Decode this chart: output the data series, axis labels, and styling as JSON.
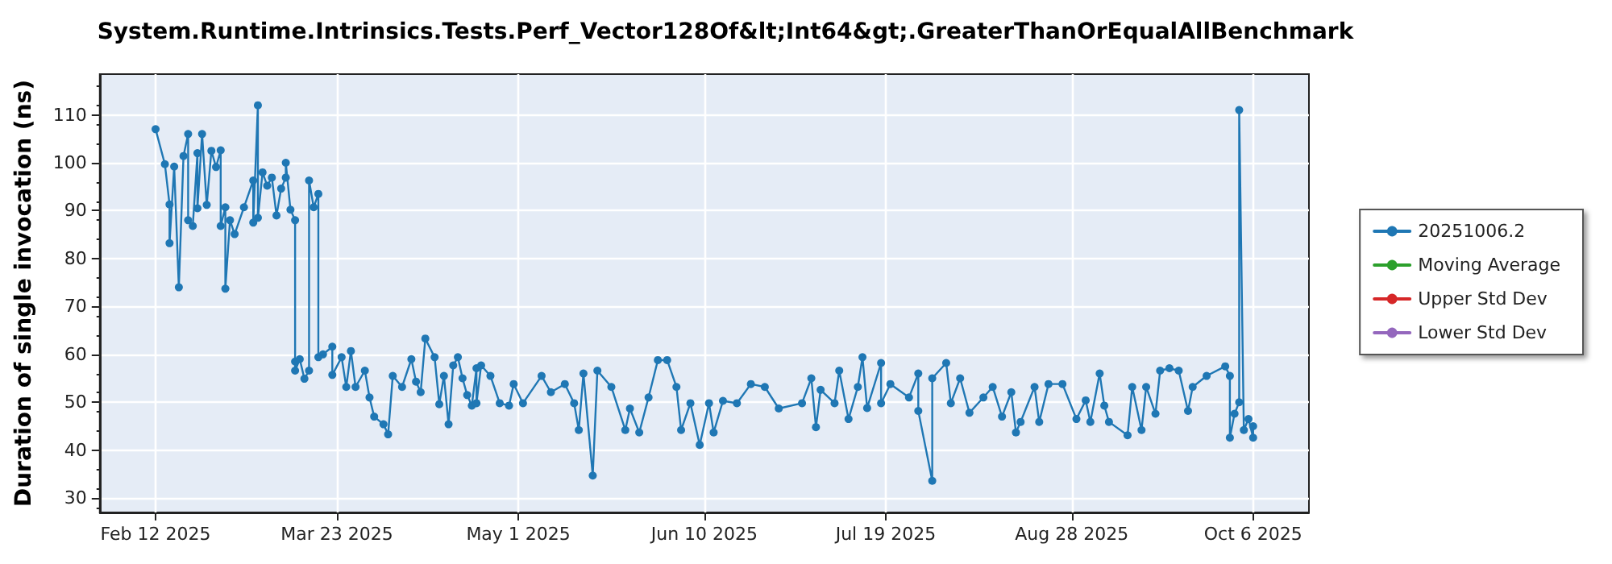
{
  "chart_data": {
    "type": "line",
    "title": "System.Runtime.Intrinsics.Tests.Perf_Vector128Of&lt;Int64&gt;.GreaterThanOrEqualAllBenchmark",
    "ylabel": "Duration of single invocation (ns)",
    "xlim": [
      "2025-01-31",
      "2025-10-18"
    ],
    "xticks": [
      {
        "value": "2025-02-12",
        "label": "Feb 12 2025"
      },
      {
        "value": "2025-03-23",
        "label": "Mar 23 2025"
      },
      {
        "value": "2025-05-01",
        "label": "May 1 2025"
      },
      {
        "value": "2025-06-10",
        "label": "Jun 10 2025"
      },
      {
        "value": "2025-07-19",
        "label": "Jul 19 2025"
      },
      {
        "value": "2025-08-28",
        "label": "Aug 28 2025"
      },
      {
        "value": "2025-10-06",
        "label": "Oct 6 2025"
      }
    ],
    "ylim": [
      27,
      118.5
    ],
    "yticks": [
      30,
      40,
      50,
      60,
      70,
      80,
      90,
      100,
      110
    ],
    "grid": true,
    "legend": "right",
    "marker": "circle",
    "line_style": "solid",
    "series": [
      {
        "name": "20251006.2",
        "color": "#1f77b4",
        "x": [
          "2025-02-12",
          "2025-02-14",
          "2025-02-15",
          "2025-02-15",
          "2025-02-16",
          "2025-02-17",
          "2025-02-18",
          "2025-02-19",
          "2025-02-19",
          "2025-02-20",
          "2025-02-21",
          "2025-02-21",
          "2025-02-22",
          "2025-02-23",
          "2025-02-24",
          "2025-02-25",
          "2025-02-26",
          "2025-02-26",
          "2025-02-27",
          "2025-02-27",
          "2025-02-28",
          "2025-03-01",
          "2025-03-03",
          "2025-03-05",
          "2025-03-05",
          "2025-03-06",
          "2025-03-06",
          "2025-03-07",
          "2025-03-08",
          "2025-03-09",
          "2025-03-10",
          "2025-03-11",
          "2025-03-12",
          "2025-03-12",
          "2025-03-13",
          "2025-03-14",
          "2025-03-14",
          "2025-03-14",
          "2025-03-15",
          "2025-03-16",
          "2025-03-17",
          "2025-03-17",
          "2025-03-18",
          "2025-03-19",
          "2025-03-19",
          "2025-03-20",
          "2025-03-22",
          "2025-03-22",
          "2025-03-24",
          "2025-03-25",
          "2025-03-26",
          "2025-03-27",
          "2025-03-29",
          "2025-03-30",
          "2025-03-31",
          "2025-04-02",
          "2025-04-03",
          "2025-04-04",
          "2025-04-06",
          "2025-04-08",
          "2025-04-09",
          "2025-04-10",
          "2025-04-11",
          "2025-04-13",
          "2025-04-14",
          "2025-04-15",
          "2025-04-16",
          "2025-04-17",
          "2025-04-18",
          "2025-04-19",
          "2025-04-20",
          "2025-04-21",
          "2025-04-22",
          "2025-04-22",
          "2025-04-23",
          "2025-04-25",
          "2025-04-27",
          "2025-04-29",
          "2025-04-30",
          "2025-05-02",
          "2025-05-06",
          "2025-05-08",
          "2025-05-11",
          "2025-05-13",
          "2025-05-14",
          "2025-05-15",
          "2025-05-17",
          "2025-05-18",
          "2025-05-21",
          "2025-05-24",
          "2025-05-25",
          "2025-05-27",
          "2025-05-29",
          "2025-05-31",
          "2025-06-02",
          "2025-06-04",
          "2025-06-05",
          "2025-06-07",
          "2025-06-09",
          "2025-06-11",
          "2025-06-12",
          "2025-06-14",
          "2025-06-17",
          "2025-06-20",
          "2025-06-23",
          "2025-06-26",
          "2025-07-01",
          "2025-07-03",
          "2025-07-04",
          "2025-07-05",
          "2025-07-08",
          "2025-07-09",
          "2025-07-11",
          "2025-07-13",
          "2025-07-14",
          "2025-07-15",
          "2025-07-18",
          "2025-07-18",
          "2025-07-20",
          "2025-07-24",
          "2025-07-26",
          "2025-07-26",
          "2025-07-29",
          "2025-07-29",
          "2025-08-01",
          "2025-08-02",
          "2025-08-04",
          "2025-08-06",
          "2025-08-09",
          "2025-08-11",
          "2025-08-13",
          "2025-08-15",
          "2025-08-16",
          "2025-08-17",
          "2025-08-20",
          "2025-08-21",
          "2025-08-23",
          "2025-08-26",
          "2025-08-29",
          "2025-08-31",
          "2025-09-01",
          "2025-09-03",
          "2025-09-04",
          "2025-09-05",
          "2025-09-09",
          "2025-09-10",
          "2025-09-12",
          "2025-09-13",
          "2025-09-15",
          "2025-09-16",
          "2025-09-18",
          "2025-09-20",
          "2025-09-22",
          "2025-09-23",
          "2025-09-26",
          "2025-09-30",
          "2025-10-01",
          "2025-10-01",
          "2025-10-02",
          "2025-10-03",
          "2025-10-03",
          "2025-10-04",
          "2025-10-05",
          "2025-10-06",
          "2025-10-06"
        ],
        "values": [
          107,
          99.7,
          91.3,
          83.2,
          99.2,
          74,
          101.4,
          106,
          88,
          86.8,
          102,
          90.5,
          106,
          91.2,
          102.5,
          99.1,
          102.6,
          86.8,
          90.7,
          73.7,
          88,
          85.1,
          90.7,
          96.3,
          87.5,
          112,
          88.5,
          98,
          95.2,
          96.9,
          89,
          94.6,
          96.9,
          100,
          90.2,
          88,
          58.5,
          56.6,
          59,
          54.9,
          56.6,
          96.3,
          90.7,
          93.5,
          59.4,
          60,
          61.6,
          55.7,
          59.4,
          53.2,
          60.7,
          53.2,
          56.6,
          51,
          47,
          45.4,
          43.3,
          55.5,
          53.2,
          59,
          54.3,
          52.1,
          63.3,
          59.4,
          49.6,
          55.5,
          45.4,
          57.7,
          59.4,
          55,
          51.5,
          49.3,
          57.1,
          49.8,
          57.7,
          55.5,
          49.8,
          49.3,
          53.8,
          49.8,
          55.5,
          52.1,
          53.8,
          49.8,
          44.2,
          56,
          34.7,
          56.6,
          53.2,
          44.2,
          48.7,
          43.7,
          51,
          58.8,
          58.8,
          53.2,
          44.2,
          49.8,
          41.1,
          49.8,
          43.7,
          50.3,
          49.8,
          53.8,
          53.2,
          48.7,
          49.8,
          55,
          44.8,
          52.6,
          49.8,
          56.6,
          46.5,
          53.2,
          59.4,
          48.8,
          58.2,
          49.8,
          53.8,
          51,
          56,
          48.2,
          33.6,
          55,
          58.2,
          49.8,
          55,
          47.8,
          51,
          53.2,
          47,
          52.1,
          43.7,
          45.9,
          53.2,
          45.9,
          53.8,
          53.8,
          46.5,
          50.4,
          45.9,
          56,
          49.3,
          45.9,
          43.1,
          53.2,
          44.2,
          53.2,
          47.6,
          56.6,
          57.1,
          56.6,
          48.2,
          53.2,
          55.5,
          57.5,
          55.5,
          42.6,
          47.6,
          50,
          111,
          44.2,
          46.5,
          42.6,
          45
        ]
      },
      {
        "name": "Moving Average",
        "color": "#2ca02c"
      },
      {
        "name": "Upper Std Dev",
        "color": "#d62728"
      },
      {
        "name": "Lower Std Dev",
        "color": "#9467bd"
      }
    ]
  }
}
